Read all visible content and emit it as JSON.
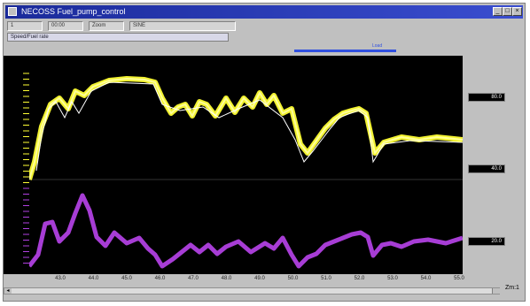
{
  "window": {
    "title": "NECOSS Fuel_pump_control",
    "buttons": [
      "_",
      "□",
      "×"
    ]
  },
  "toolbar": {
    "fields": [
      "1",
      "00:00",
      "Zoom",
      "SINE"
    ]
  },
  "subtoolbar": {
    "label": "Speed/Fuel rate"
  },
  "progress": {
    "label": "Load",
    "value": 0.62
  },
  "readouts": [
    "80.0",
    "40.0",
    "20.0"
  ],
  "axis": {
    "x_ticks": [
      "43.0",
      "44.0",
      "45.0",
      "46.0",
      "47.0",
      "48.0",
      "49.0",
      "50.0",
      "51.0",
      "52.0",
      "53.0",
      "54.0",
      "55.0"
    ]
  },
  "zoom_label": "Zm:1",
  "colors": {
    "yellow_trace": "#ffff33",
    "white_trace": "#ffffff",
    "purple_trace": "#b040e0",
    "plot_bg": "#000000"
  }
}
